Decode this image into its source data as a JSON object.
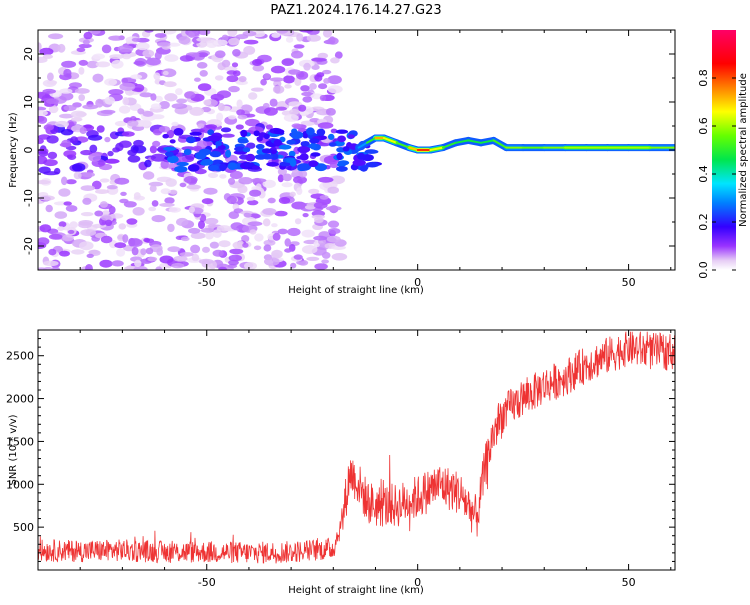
{
  "chart_data": [
    {
      "type": "heatmap",
      "title": "PAZ1.2024.176.14.27.G23",
      "xlabel": "Height of straight line (km)",
      "ylabel": "Frequency (Hz)",
      "xlim": [
        -90,
        61
      ],
      "ylim": [
        -25,
        25
      ],
      "xticks": [
        -50,
        0,
        50
      ],
      "yticks": [
        -20,
        -10,
        0,
        10,
        20
      ],
      "grid": false,
      "colorbar": {
        "label": "Normalized spectral amplitude",
        "range": [
          0.0,
          1.0
        ],
        "ticks": [
          "0.0",
          "0.2",
          "0.4",
          "0.6",
          "0.8"
        ],
        "colormap": [
          "#ffffff",
          "#e6ccf5",
          "#9933ff",
          "#3300ff",
          "#0080ff",
          "#00e5ff",
          "#00e64d",
          "#66ff00",
          "#ffff00",
          "#ff8000",
          "#ff0000",
          "#ff0066"
        ]
      },
      "ridge": [
        {
          "x": -14,
          "y": 0.5,
          "amp": 0.25
        },
        {
          "x": -12,
          "y": 1.5,
          "amp": 0.35
        },
        {
          "x": -10,
          "y": 2.5,
          "amp": 0.65
        },
        {
          "x": -8,
          "y": 2.5,
          "amp": 0.8
        },
        {
          "x": -5,
          "y": 1.5,
          "amp": 0.5
        },
        {
          "x": -2,
          "y": 0.5,
          "amp": 0.55
        },
        {
          "x": 0,
          "y": 0.0,
          "amp": 0.85
        },
        {
          "x": 3,
          "y": 0.0,
          "amp": 0.8
        },
        {
          "x": 6,
          "y": 0.5,
          "amp": 0.5
        },
        {
          "x": 9,
          "y": 1.5,
          "amp": 0.5
        },
        {
          "x": 12,
          "y": 2.0,
          "amp": 0.45
        },
        {
          "x": 15,
          "y": 1.5,
          "amp": 0.5
        },
        {
          "x": 18,
          "y": 2.0,
          "amp": 0.45
        },
        {
          "x": 21,
          "y": 0.5,
          "amp": 0.6
        },
        {
          "x": 25,
          "y": 0.5,
          "amp": 0.55
        },
        {
          "x": 30,
          "y": 0.5,
          "amp": 0.55
        },
        {
          "x": 35,
          "y": 0.5,
          "amp": 0.6
        },
        {
          "x": 40,
          "y": 0.5,
          "amp": 0.6
        },
        {
          "x": 45,
          "y": 0.5,
          "amp": 0.6
        },
        {
          "x": 50,
          "y": 0.5,
          "amp": 0.6
        },
        {
          "x": 55,
          "y": 0.5,
          "amp": 0.6
        },
        {
          "x": 61,
          "y": 0.5,
          "amp": 0.55
        }
      ]
    },
    {
      "type": "line",
      "xlabel": "Height of straight line (km)",
      "ylabel": "SNR (10 * v/v)",
      "xlim": [
        -90,
        61
      ],
      "ylim": [
        0,
        2800
      ],
      "xticks": [
        -50,
        0,
        50
      ],
      "yticks": [
        500,
        1000,
        1500,
        2000,
        2500
      ],
      "grid": false,
      "color": "#ee3333",
      "series": [
        {
          "x": [
            -90,
            -80,
            -70,
            -60,
            -50,
            -40,
            -30,
            -20,
            -18,
            -16,
            -14,
            -12,
            -10,
            -5,
            0,
            5,
            10,
            14,
            16,
            18,
            20,
            22,
            25,
            30,
            35,
            40,
            45,
            50,
            55,
            61
          ],
          "y": [
            230,
            220,
            230,
            210,
            210,
            200,
            210,
            250,
            550,
            1150,
            1000,
            800,
            750,
            750,
            850,
            1000,
            900,
            600,
            1200,
            1600,
            1800,
            1900,
            2000,
            2150,
            2250,
            2400,
            2500,
            2600,
            2550,
            2550
          ]
        }
      ]
    }
  ]
}
